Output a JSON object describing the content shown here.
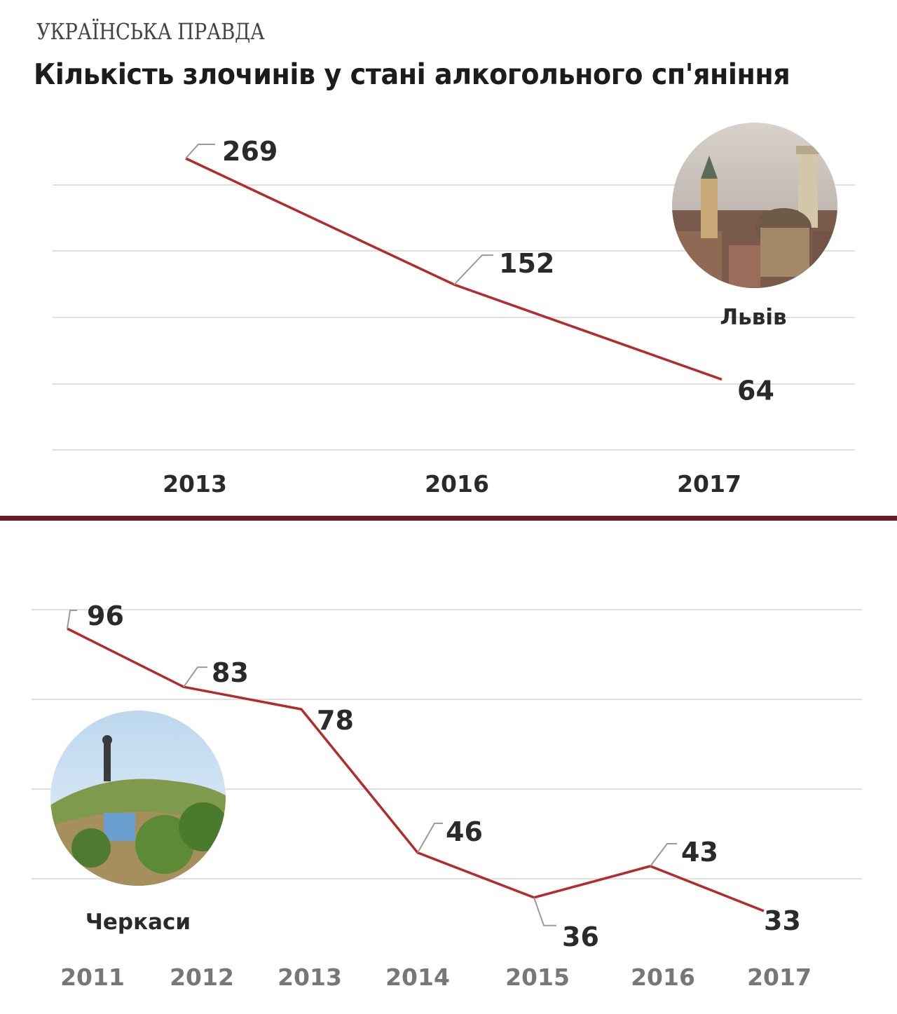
{
  "brand": "УКРАЇНСЬКА ПРАВДА",
  "title": "Кількість злочинів у стані алкогольного сп'яніння",
  "colors": {
    "series": "#b52a2a",
    "divider": "#6b1a1f"
  },
  "chart_data": [
    {
      "type": "line",
      "city": "Львів",
      "x": [
        "2013",
        "2016",
        "2017"
      ],
      "values": [
        269,
        152,
        64
      ],
      "ylim": [
        0,
        300
      ],
      "grid": true
    },
    {
      "type": "line",
      "city": "Черкаси",
      "x": [
        "2011",
        "2012",
        "2013",
        "2014",
        "2015",
        "2016",
        "2017"
      ],
      "values": [
        96,
        83,
        78,
        46,
        36,
        43,
        33
      ],
      "ylim": [
        0,
        100
      ],
      "grid": true
    }
  ]
}
